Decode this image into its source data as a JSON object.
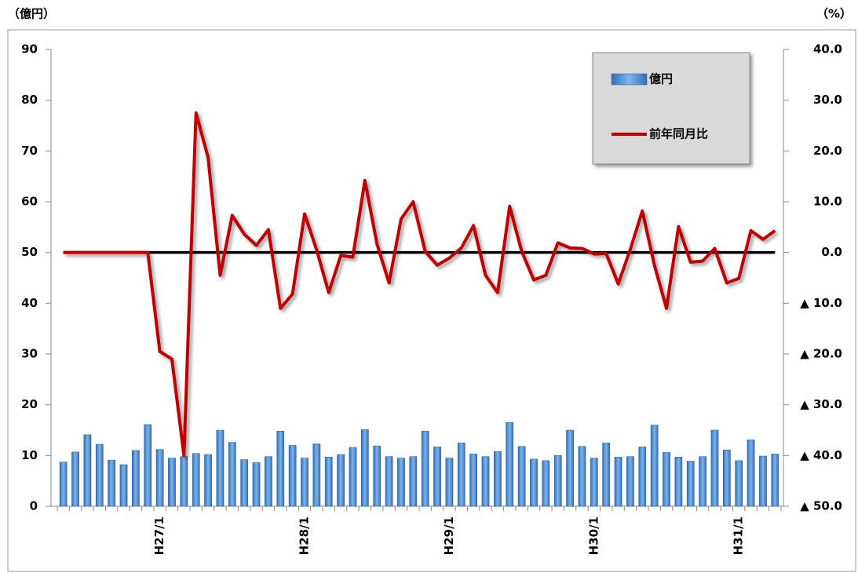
{
  "chart_data": {
    "type": "bar-line",
    "y_label": "（億円）",
    "y2_label": "（%）",
    "categories": [
      null,
      null,
      null,
      null,
      null,
      null,
      null,
      null,
      "H27/1",
      null,
      null,
      null,
      null,
      null,
      null,
      null,
      null,
      null,
      null,
      null,
      "H28/1",
      null,
      null,
      null,
      null,
      null,
      null,
      null,
      null,
      null,
      null,
      null,
      "H29/1",
      null,
      null,
      null,
      null,
      null,
      null,
      null,
      null,
      null,
      null,
      null,
      "H30/1",
      null,
      null,
      null,
      null,
      null,
      null,
      null,
      null,
      null,
      null,
      null,
      "H31/1",
      null,
      null,
      null
    ],
    "series": [
      {
        "name": "億円",
        "color": "#4a8fd6",
        "type": "bar",
        "values": [
          8.7,
          10.7,
          14.1,
          12.2,
          9.1,
          8.2,
          11.0,
          16.1,
          11.2,
          9.5,
          9.8,
          10.4,
          10.2,
          15.0,
          12.6,
          9.2,
          8.6,
          9.8,
          14.8,
          12.0,
          9.5,
          12.3,
          9.7,
          10.2,
          11.6,
          15.1,
          11.9,
          9.8,
          9.5,
          9.8,
          14.8,
          11.7,
          9.5,
          12.5,
          10.3,
          9.8,
          10.8,
          16.5,
          11.8,
          9.3,
          9.0,
          10.0,
          15.0,
          11.8,
          9.5,
          12.5,
          9.7,
          9.8,
          11.7,
          16.0,
          10.6,
          9.7,
          8.9,
          9.8,
          15.0,
          11.1,
          9.0,
          13.1,
          9.9,
          10.3
        ]
      },
      {
        "name": "前年同月比",
        "color": "#c00000",
        "type": "line",
        "axis": "y2",
        "values": [
          0,
          0,
          0,
          0,
          0,
          0,
          0,
          0,
          -19.5,
          -21,
          -40,
          27.5,
          18.7,
          -4.5,
          7.3,
          3.6,
          1.4,
          4.5,
          -11,
          -8.2,
          7.6,
          0.5,
          -7.9,
          -0.6,
          -0.9,
          14.2,
          1.7,
          -6,
          6.6,
          10.0,
          0.2,
          -2.5,
          -1.1,
          0.9,
          5.3,
          -4.5,
          -7.9,
          9.1,
          0.2,
          -5.4,
          -4.5,
          1.9,
          0.9,
          0.8,
          -0.3,
          -0.2,
          -6.2,
          0.6,
          8.2,
          -2.5,
          -11,
          5.1,
          -1.9,
          -1.7,
          0.8,
          -6,
          -5.1,
          4.3,
          2.6,
          4.3
        ]
      }
    ],
    "ylim": [
      0,
      90
    ],
    "yticks": [
      0,
      10,
      20,
      30,
      40,
      50,
      60,
      70,
      80,
      90
    ],
    "y2lim": [
      -50,
      40
    ],
    "y2ticks": [
      {
        "value": -50,
        "label": "▲ 50.0"
      },
      {
        "value": -40,
        "label": "▲ 40.0"
      },
      {
        "value": -30,
        "label": "▲ 30.0"
      },
      {
        "value": -20,
        "label": "▲ 20.0"
      },
      {
        "value": -10,
        "label": "▲ 10.0"
      },
      {
        "value": 0,
        "label": "0.0"
      },
      {
        "value": 10,
        "label": "10.0"
      },
      {
        "value": 20,
        "label": "20.0"
      },
      {
        "value": 30,
        "label": "30.0"
      },
      {
        "value": 40,
        "label": "40.0"
      }
    ],
    "zero_line": true,
    "legend": "top-right"
  }
}
